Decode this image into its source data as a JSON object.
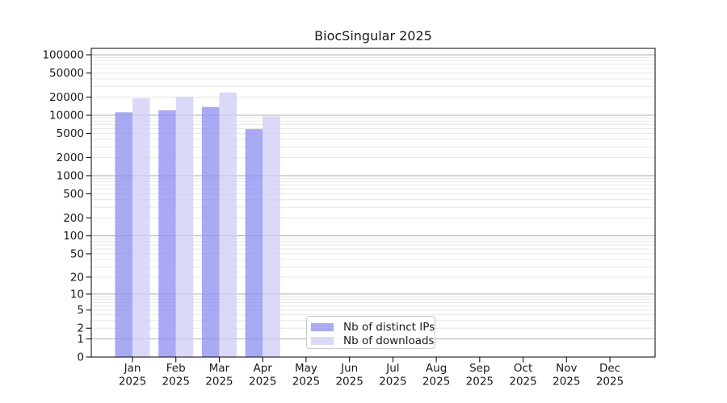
{
  "chart_data": {
    "type": "bar",
    "title": "BiocSingular 2025",
    "categories": [
      "Jan 2025",
      "Feb 2025",
      "Mar 2025",
      "Apr 2025",
      "May 2025",
      "Jun 2025",
      "Jul 2025",
      "Aug 2025",
      "Sep 2025",
      "Oct 2025",
      "Nov 2025",
      "Dec 2025"
    ],
    "series": [
      {
        "name": "Nb of distinct IPs",
        "color": "#a9a9f4",
        "bar_fill": "#9191f1",
        "values": [
          11200,
          12100,
          13700,
          5900,
          null,
          null,
          null,
          null,
          null,
          null,
          null,
          null
        ]
      },
      {
        "name": "Nb of downloads",
        "color": "#dadaf8",
        "bar_fill": "#d0d0f6",
        "values": [
          19100,
          20300,
          23800,
          9600,
          null,
          null,
          null,
          null,
          null,
          null,
          null,
          null
        ]
      }
    ],
    "yticks": [
      0,
      1,
      2,
      5,
      10,
      20,
      50,
      100,
      200,
      500,
      1000,
      2000,
      5000,
      10000,
      20000,
      50000,
      100000
    ],
    "y_scale": "log10(value+1)",
    "ylim": [
      0,
      100000
    ],
    "grid": true,
    "grid_major_color": "#ababab",
    "grid_minor_color": "#e7e7e7",
    "axis_color": "#000000",
    "text_color": "#1a1a1a",
    "legend_position": "lower center"
  }
}
